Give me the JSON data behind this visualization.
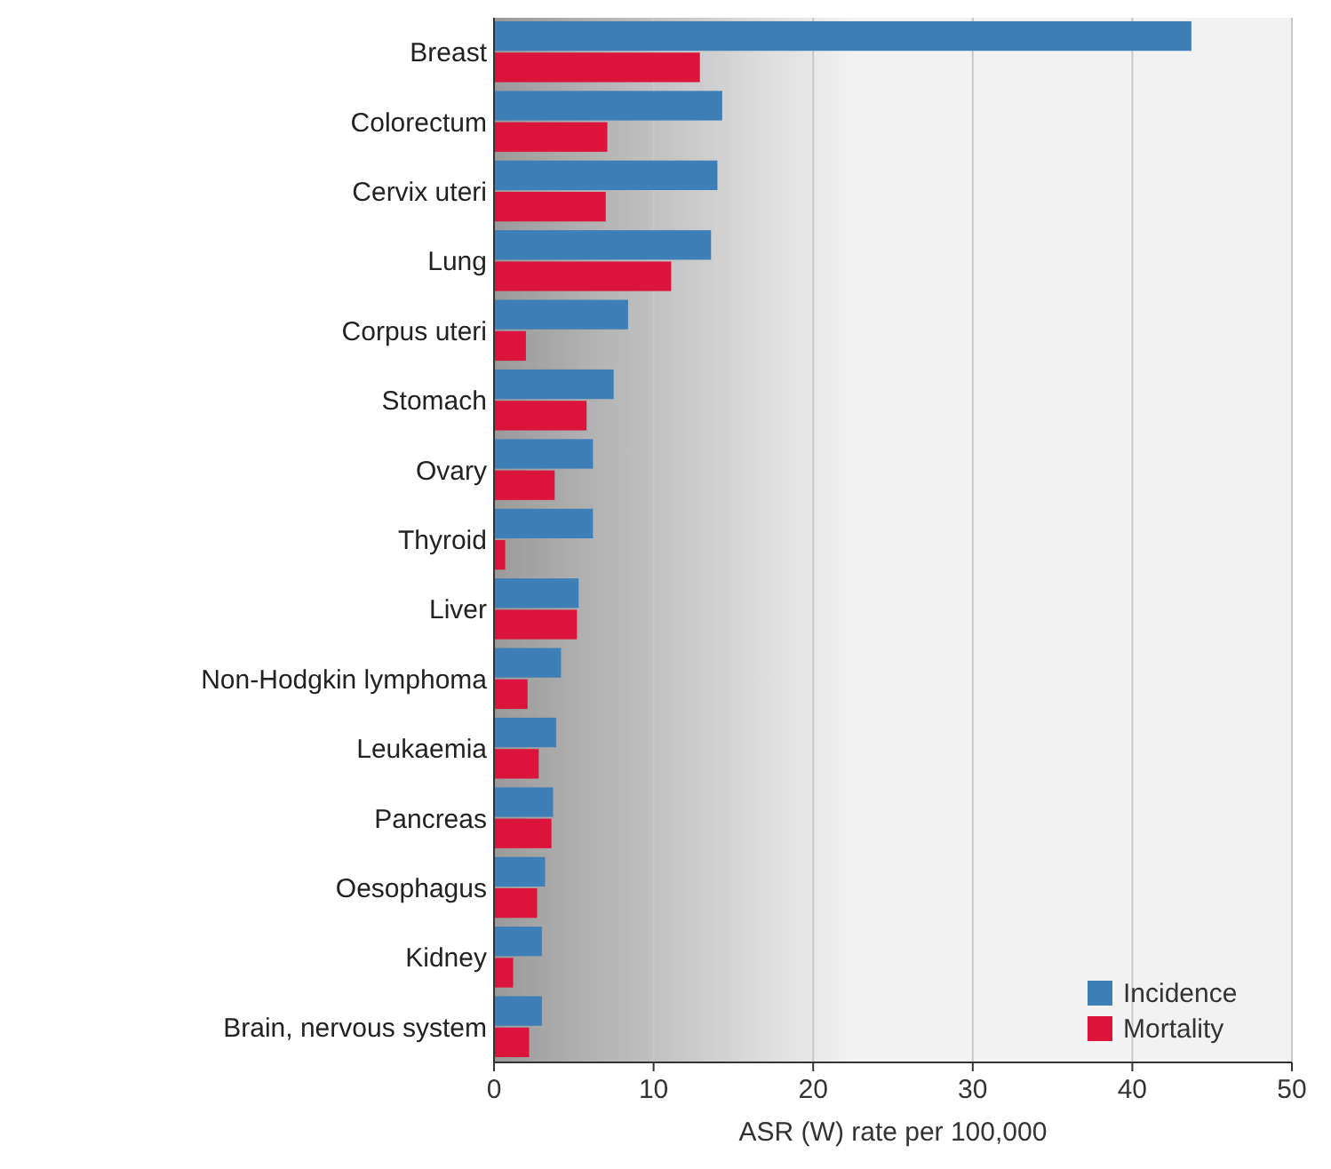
{
  "chart_data": {
    "type": "bar",
    "orientation": "horizontal",
    "xlabel": "ASR (W) rate per 100,000",
    "categories": [
      "Breast",
      "Colorectum",
      "Cervix uteri",
      "Lung",
      "Corpus uteri",
      "Stomach",
      "Ovary",
      "Thyroid",
      "Liver",
      "Non-Hodgkin lymphoma",
      "Leukaemia",
      "Pancreas",
      "Oesophagus",
      "Kidney",
      "Brain, nervous system"
    ],
    "series": [
      {
        "name": "Incidence",
        "color": "#3f7fb8",
        "values": [
          43.7,
          14.3,
          14.0,
          13.6,
          8.4,
          7.5,
          6.2,
          6.2,
          5.3,
          4.2,
          3.9,
          3.7,
          3.2,
          3.0,
          3.0
        ]
      },
      {
        "name": "Mortality",
        "color": "#dc143c",
        "values": [
          12.9,
          7.1,
          7.0,
          11.1,
          2.0,
          5.8,
          3.8,
          0.7,
          5.2,
          2.1,
          2.8,
          3.6,
          2.7,
          1.2,
          2.2
        ]
      }
    ],
    "xlim": [
      0,
      50
    ],
    "xticks": [
      0,
      10,
      20,
      30,
      40,
      50
    ],
    "grid": "x",
    "legend": "bottom right"
  }
}
